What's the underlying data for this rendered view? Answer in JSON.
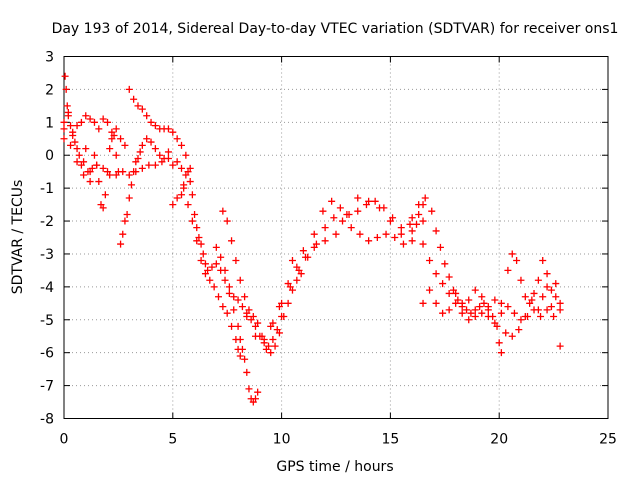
{
  "chart_data": {
    "type": "scatter",
    "title": "Day 193 of 2014, Sidereal Day-to-day VTEC variation (SDTVAR) for receiver ons1",
    "xlabel": "GPS time / hours",
    "ylabel": "SDTVAR / TECUs",
    "xlim": [
      0,
      25
    ],
    "ylim": [
      -8,
      3
    ],
    "xticks": [
      0,
      5,
      10,
      15,
      20,
      25
    ],
    "yticks": [
      -8,
      -7,
      -6,
      -5,
      -4,
      -3,
      -2,
      -1,
      0,
      1,
      2,
      3
    ],
    "grid": true,
    "marker": "+",
    "series": [
      {
        "name": "ons1",
        "color": "#ff0000",
        "points": [
          [
            0.0,
            0.8
          ],
          [
            0.05,
            2.4
          ],
          [
            0.1,
            2.0
          ],
          [
            0.15,
            1.5
          ],
          [
            0.2,
            1.2
          ],
          [
            0.3,
            0.9
          ],
          [
            0.4,
            0.6
          ],
          [
            0.5,
            0.4
          ],
          [
            0.6,
            0.2
          ],
          [
            0.7,
            0.0
          ],
          [
            0.8,
            -0.3
          ],
          [
            0.9,
            -0.2
          ],
          [
            1.0,
            0.2
          ],
          [
            1.1,
            -0.5
          ],
          [
            1.2,
            -0.8
          ],
          [
            1.3,
            -0.4
          ],
          [
            1.4,
            0.0
          ],
          [
            1.5,
            -0.3
          ],
          [
            1.6,
            -0.8
          ],
          [
            1.7,
            -1.5
          ],
          [
            1.8,
            -1.6
          ],
          [
            1.9,
            -1.2
          ],
          [
            2.0,
            -0.5
          ],
          [
            2.1,
            0.2
          ],
          [
            2.2,
            0.5
          ],
          [
            2.3,
            0.6
          ],
          [
            2.4,
            0.0
          ],
          [
            2.5,
            -0.5
          ],
          [
            2.6,
            -2.7
          ],
          [
            2.7,
            -2.4
          ],
          [
            2.8,
            -2.0
          ],
          [
            2.9,
            -1.8
          ],
          [
            3.0,
            -1.3
          ],
          [
            3.1,
            -0.9
          ],
          [
            3.2,
            -0.5
          ],
          [
            3.3,
            -0.2
          ],
          [
            3.4,
            -0.1
          ],
          [
            3.5,
            0.1
          ],
          [
            3.6,
            0.3
          ],
          [
            3.8,
            0.5
          ],
          [
            4.0,
            0.4
          ],
          [
            4.2,
            0.2
          ],
          [
            4.4,
            0.0
          ],
          [
            4.6,
            -0.1
          ],
          [
            4.8,
            0.1
          ],
          [
            0.0,
            1.0
          ],
          [
            0.2,
            1.3
          ],
          [
            0.4,
            0.7
          ],
          [
            0.6,
            0.9
          ],
          [
            0.8,
            1.0
          ],
          [
            1.0,
            1.2
          ],
          [
            1.2,
            1.1
          ],
          [
            1.4,
            1.0
          ],
          [
            1.6,
            0.8
          ],
          [
            1.8,
            1.1
          ],
          [
            2.0,
            1.0
          ],
          [
            2.2,
            0.7
          ],
          [
            2.4,
            0.8
          ],
          [
            2.6,
            0.5
          ],
          [
            2.8,
            0.3
          ],
          [
            3.0,
            2.0
          ],
          [
            3.2,
            1.7
          ],
          [
            3.4,
            1.5
          ],
          [
            3.6,
            1.4
          ],
          [
            3.8,
            1.2
          ],
          [
            4.0,
            1.0
          ],
          [
            4.2,
            0.9
          ],
          [
            4.4,
            0.8
          ],
          [
            4.6,
            0.8
          ],
          [
            4.8,
            0.8
          ],
          [
            5.0,
            0.7
          ],
          [
            5.2,
            0.5
          ],
          [
            5.4,
            0.3
          ],
          [
            5.6,
            0.0
          ],
          [
            5.8,
            -0.4
          ],
          [
            0.0,
            0.5
          ],
          [
            0.3,
            0.3
          ],
          [
            0.6,
            -0.2
          ],
          [
            0.9,
            -0.6
          ],
          [
            1.2,
            -0.5
          ],
          [
            1.5,
            -0.3
          ],
          [
            1.8,
            -0.4
          ],
          [
            2.1,
            -0.6
          ],
          [
            2.4,
            -0.6
          ],
          [
            2.7,
            -0.5
          ],
          [
            3.0,
            -0.6
          ],
          [
            3.3,
            -0.5
          ],
          [
            3.6,
            -0.4
          ],
          [
            3.9,
            -0.3
          ],
          [
            4.2,
            -0.3
          ],
          [
            4.5,
            -0.2
          ],
          [
            4.8,
            -0.1
          ],
          [
            5.0,
            -0.3
          ],
          [
            5.2,
            -0.2
          ],
          [
            5.4,
            -0.4
          ],
          [
            5.0,
            -1.5
          ],
          [
            5.2,
            -1.3
          ],
          [
            5.4,
            -1.2
          ],
          [
            5.5,
            -0.9
          ],
          [
            5.6,
            -0.6
          ],
          [
            5.7,
            -0.5
          ],
          [
            5.8,
            -0.8
          ],
          [
            5.9,
            -1.2
          ],
          [
            6.0,
            -1.8
          ],
          [
            6.1,
            -2.2
          ],
          [
            6.2,
            -2.5
          ],
          [
            6.3,
            -2.7
          ],
          [
            6.4,
            -3.0
          ],
          [
            6.5,
            -3.3
          ],
          [
            6.6,
            -3.5
          ],
          [
            6.8,
            -3.4
          ],
          [
            7.0,
            -3.3
          ],
          [
            7.2,
            -3.5
          ],
          [
            7.4,
            -3.8
          ],
          [
            7.6,
            -4.2
          ],
          [
            7.8,
            -4.7
          ],
          [
            8.0,
            -5.2
          ],
          [
            8.1,
            -5.6
          ],
          [
            8.2,
            -5.9
          ],
          [
            8.3,
            -6.2
          ],
          [
            8.4,
            -6.6
          ],
          [
            8.5,
            -7.1
          ],
          [
            8.6,
            -7.4
          ],
          [
            8.7,
            -7.5
          ],
          [
            8.8,
            -7.4
          ],
          [
            8.9,
            -7.2
          ],
          [
            5.5,
            -1.0
          ],
          [
            5.7,
            -1.5
          ],
          [
            5.9,
            -2.0
          ],
          [
            6.1,
            -2.6
          ],
          [
            6.3,
            -3.2
          ],
          [
            6.5,
            -3.6
          ],
          [
            6.7,
            -3.8
          ],
          [
            6.9,
            -4.0
          ],
          [
            7.1,
            -4.3
          ],
          [
            7.3,
            -4.6
          ],
          [
            7.5,
            -4.8
          ],
          [
            7.7,
            -5.2
          ],
          [
            7.9,
            -5.6
          ],
          [
            8.0,
            -5.9
          ],
          [
            8.1,
            -6.1
          ],
          [
            7.3,
            -1.7
          ],
          [
            7.5,
            -2.0
          ],
          [
            7.7,
            -2.6
          ],
          [
            7.9,
            -3.2
          ],
          [
            8.1,
            -3.8
          ],
          [
            8.3,
            -4.3
          ],
          [
            8.5,
            -4.7
          ],
          [
            8.7,
            -4.9
          ],
          [
            8.9,
            -5.1
          ],
          [
            9.1,
            -5.5
          ],
          [
            9.3,
            -5.9
          ],
          [
            9.5,
            -6.0
          ],
          [
            9.7,
            -5.8
          ],
          [
            9.9,
            -5.4
          ],
          [
            10.1,
            -4.9
          ],
          [
            10.3,
            -4.5
          ],
          [
            10.5,
            -4.1
          ],
          [
            10.7,
            -3.8
          ],
          [
            10.9,
            -3.6
          ],
          [
            7.0,
            -2.8
          ],
          [
            7.2,
            -3.1
          ],
          [
            7.4,
            -3.5
          ],
          [
            7.6,
            -4.0
          ],
          [
            7.8,
            -4.3
          ],
          [
            8.0,
            -4.4
          ],
          [
            8.2,
            -4.6
          ],
          [
            8.4,
            -4.8
          ],
          [
            8.6,
            -5.0
          ],
          [
            8.8,
            -5.2
          ],
          [
            9.0,
            -5.5
          ],
          [
            9.2,
            -5.7
          ],
          [
            9.4,
            -5.8
          ],
          [
            9.6,
            -5.6
          ],
          [
            9.8,
            -5.3
          ],
          [
            10.0,
            -4.9
          ],
          [
            8.4,
            -4.9
          ],
          [
            8.8,
            -5.5
          ],
          [
            9.2,
            -5.6
          ],
          [
            9.6,
            -5.1
          ],
          [
            10.0,
            -4.5
          ],
          [
            10.4,
            -4.0
          ],
          [
            10.8,
            -3.5
          ],
          [
            11.2,
            -3.1
          ],
          [
            11.6,
            -2.7
          ],
          [
            12.0,
            -2.2
          ],
          [
            12.4,
            -1.9
          ],
          [
            12.8,
            -2.0
          ],
          [
            13.2,
            -2.2
          ],
          [
            13.6,
            -2.4
          ],
          [
            14.0,
            -2.6
          ],
          [
            14.4,
            -2.5
          ],
          [
            14.8,
            -2.4
          ],
          [
            15.2,
            -2.5
          ],
          [
            15.6,
            -2.7
          ],
          [
            16.0,
            -2.6
          ],
          [
            9.5,
            -5.2
          ],
          [
            9.9,
            -4.6
          ],
          [
            10.3,
            -3.9
          ],
          [
            10.7,
            -3.4
          ],
          [
            11.1,
            -3.1
          ],
          [
            11.5,
            -2.4
          ],
          [
            11.9,
            -1.7
          ],
          [
            12.3,
            -1.4
          ],
          [
            12.7,
            -1.6
          ],
          [
            13.1,
            -1.8
          ],
          [
            13.5,
            -1.7
          ],
          [
            13.9,
            -1.5
          ],
          [
            14.3,
            -1.4
          ],
          [
            14.7,
            -1.6
          ],
          [
            15.1,
            -1.9
          ],
          [
            15.5,
            -2.2
          ],
          [
            15.9,
            -2.1
          ],
          [
            16.3,
            -1.8
          ],
          [
            16.5,
            -1.5
          ],
          [
            10.5,
            -3.2
          ],
          [
            11.0,
            -2.9
          ],
          [
            11.5,
            -2.8
          ],
          [
            12.0,
            -2.6
          ],
          [
            12.5,
            -2.4
          ],
          [
            13.0,
            -1.8
          ],
          [
            13.5,
            -1.3
          ],
          [
            14.0,
            -1.4
          ],
          [
            14.5,
            -1.6
          ],
          [
            15.0,
            -2.0
          ],
          [
            15.5,
            -2.4
          ],
          [
            16.0,
            -2.3
          ],
          [
            16.5,
            -2.0
          ],
          [
            16.0,
            -1.9
          ],
          [
            16.3,
            -1.5
          ],
          [
            16.6,
            -1.3
          ],
          [
            16.9,
            -1.7
          ],
          [
            17.1,
            -2.3
          ],
          [
            17.3,
            -2.8
          ],
          [
            17.5,
            -3.3
          ],
          [
            17.7,
            -3.7
          ],
          [
            17.9,
            -4.1
          ],
          [
            18.1,
            -4.4
          ],
          [
            18.3,
            -4.6
          ],
          [
            18.5,
            -4.7
          ],
          [
            18.7,
            -4.8
          ],
          [
            18.9,
            -4.7
          ],
          [
            19.1,
            -4.6
          ],
          [
            19.3,
            -4.5
          ],
          [
            19.5,
            -4.7
          ],
          [
            19.7,
            -4.9
          ],
          [
            19.9,
            -5.2
          ],
          [
            20.0,
            -5.7
          ],
          [
            20.1,
            -6.0
          ],
          [
            16.2,
            -2.1
          ],
          [
            16.5,
            -2.7
          ],
          [
            16.8,
            -3.2
          ],
          [
            17.1,
            -3.6
          ],
          [
            17.4,
            -3.9
          ],
          [
            17.7,
            -4.2
          ],
          [
            18.0,
            -4.5
          ],
          [
            18.3,
            -4.8
          ],
          [
            18.6,
            -5.0
          ],
          [
            18.9,
            -4.9
          ],
          [
            19.2,
            -4.8
          ],
          [
            16.5,
            -4.5
          ],
          [
            16.8,
            -4.1
          ],
          [
            17.1,
            -4.5
          ],
          [
            17.4,
            -4.8
          ],
          [
            17.7,
            -4.7
          ],
          [
            18.0,
            -4.2
          ],
          [
            18.3,
            -4.5
          ],
          [
            18.6,
            -4.4
          ],
          [
            18.9,
            -4.1
          ],
          [
            19.2,
            -4.3
          ],
          [
            19.5,
            -4.6
          ],
          [
            19.8,
            -4.4
          ],
          [
            20.1,
            -4.5
          ],
          [
            20.4,
            -3.5
          ],
          [
            20.6,
            -3.0
          ],
          [
            20.8,
            -3.2
          ],
          [
            21.0,
            -3.8
          ],
          [
            21.2,
            -4.3
          ],
          [
            21.4,
            -4.5
          ],
          [
            21.6,
            -4.2
          ],
          [
            21.8,
            -4.7
          ],
          [
            22.0,
            -4.3
          ],
          [
            22.2,
            -4.0
          ],
          [
            22.4,
            -4.6
          ],
          [
            22.6,
            -4.3
          ],
          [
            22.8,
            -4.5
          ],
          [
            19.5,
            -4.9
          ],
          [
            19.8,
            -5.1
          ],
          [
            20.1,
            -4.8
          ],
          [
            20.4,
            -4.6
          ],
          [
            20.7,
            -4.8
          ],
          [
            21.0,
            -5.0
          ],
          [
            21.3,
            -4.9
          ],
          [
            21.6,
            -4.7
          ],
          [
            21.9,
            -4.9
          ],
          [
            22.2,
            -4.7
          ],
          [
            22.5,
            -4.9
          ],
          [
            22.8,
            -4.7
          ],
          [
            20.3,
            -5.4
          ],
          [
            20.6,
            -5.5
          ],
          [
            20.9,
            -5.3
          ],
          [
            21.2,
            -4.9
          ],
          [
            21.5,
            -4.4
          ],
          [
            21.8,
            -3.8
          ],
          [
            22.0,
            -3.2
          ],
          [
            22.2,
            -3.6
          ],
          [
            22.4,
            -4.1
          ],
          [
            22.6,
            -3.9
          ],
          [
            22.8,
            -5.8
          ]
        ]
      }
    ]
  }
}
